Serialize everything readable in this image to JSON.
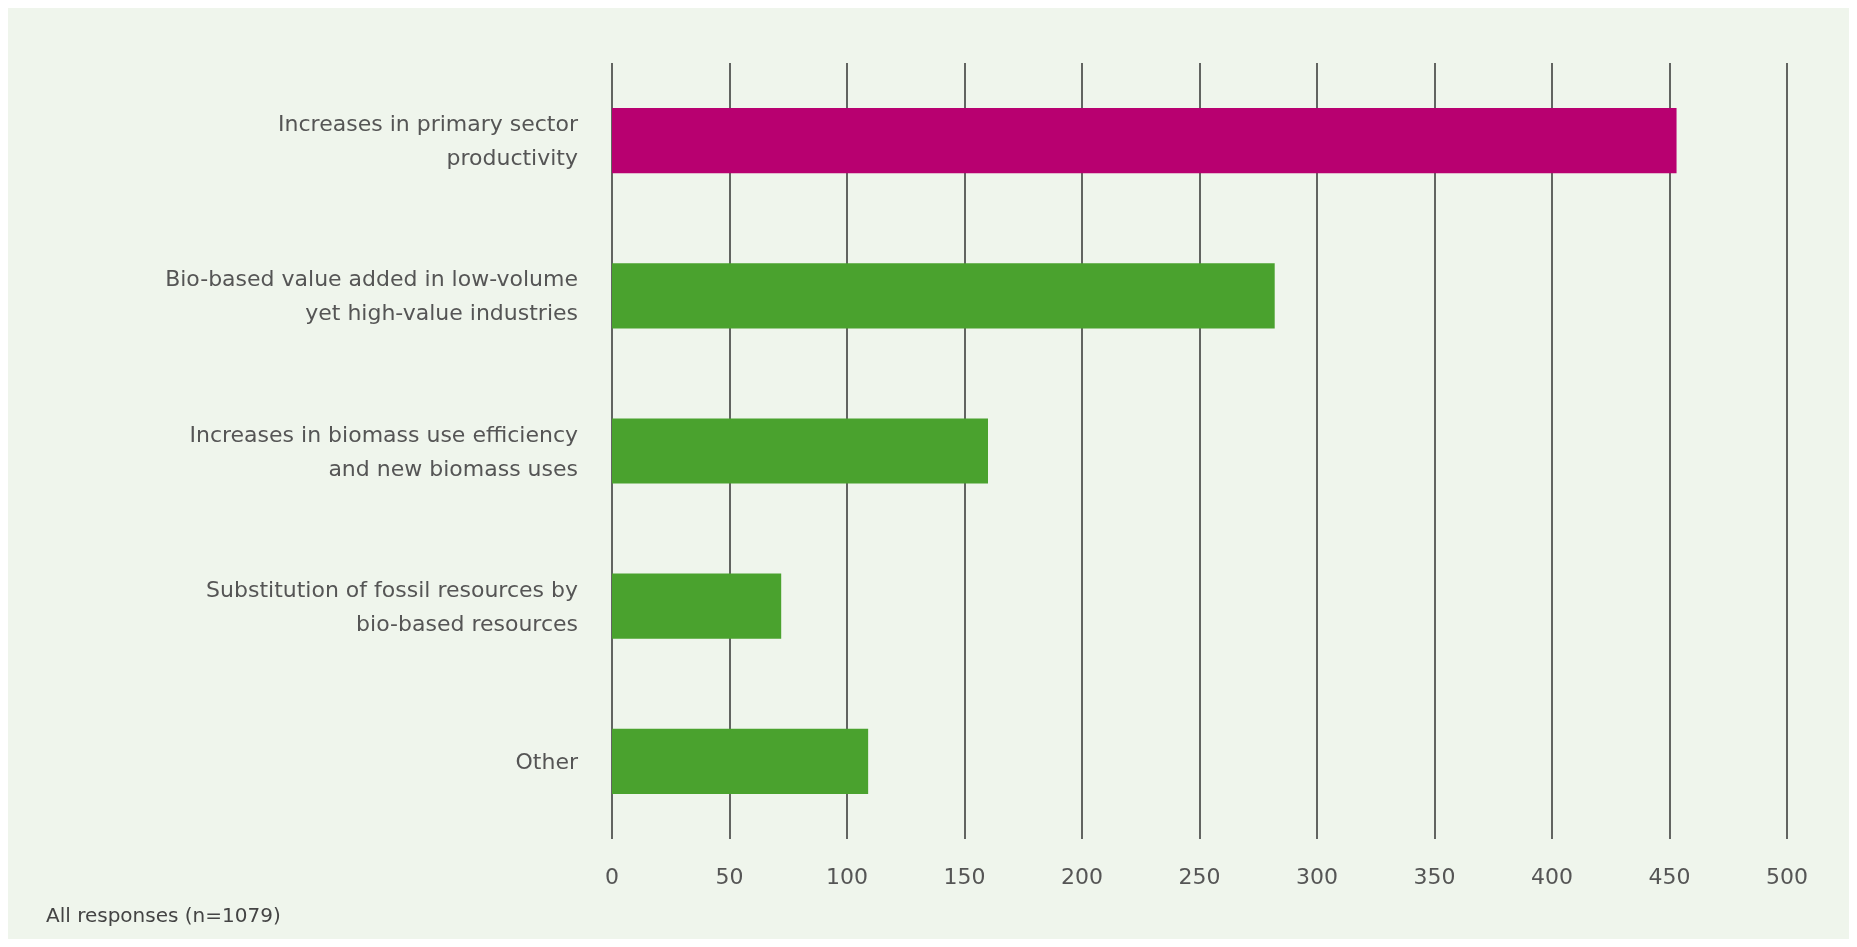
{
  "chart_data": {
    "type": "bar",
    "orientation": "horizontal",
    "categories": [
      "Increases in primary sector productivity",
      "Bio-based value added in low-volume yet high-value industries",
      "Increases in biomass use efficiency and new biomass uses",
      "Substitution of fossil resources by bio-based resources",
      "Other"
    ],
    "values": [
      453,
      282,
      160,
      72,
      109
    ],
    "colors": [
      "#b80070",
      "#4aa22e",
      "#4aa22e",
      "#4aa22e",
      "#4aa22e"
    ],
    "xlim": [
      0,
      500
    ],
    "xticks": [
      0,
      50,
      100,
      150,
      200,
      250,
      300,
      350,
      400,
      450,
      500
    ],
    "grid": "x",
    "annotations": [
      "All responses (n=1079)"
    ]
  }
}
